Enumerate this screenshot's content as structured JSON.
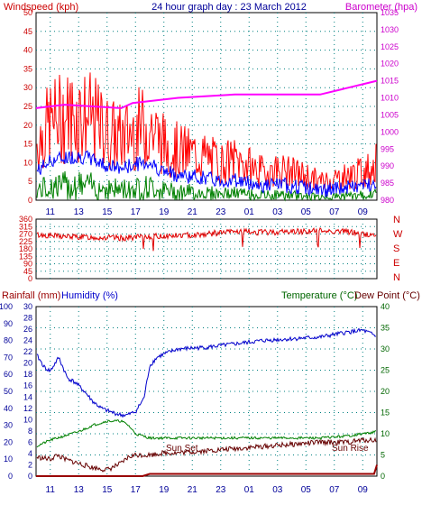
{
  "header": {
    "left_label": "Windspeed (kph)",
    "title": "24 hour graph day : 23 March 2012",
    "right_label": "Barometer (hpa)"
  },
  "colors": {
    "wind_gust": "#ff0000",
    "wind_avg": "#0000ff",
    "wind_low": "#008000",
    "barometer": "#ff00ff",
    "direction": "#e00000",
    "humidity": "#0000cc",
    "temperature": "#008000",
    "dew_point": "#660000",
    "rainfall": "#990000",
    "axis_red": "#cc0000",
    "axis_pink": "#cc00cc",
    "axis_blue": "#000099",
    "axis_green": "#006600",
    "grid": "#008080"
  },
  "chart_data": [
    {
      "id": "wind",
      "type": "line",
      "title": "24 hour graph day : 23 March 2012",
      "x_ticks": [
        "11",
        "13",
        "15",
        "17",
        "19",
        "21",
        "23",
        "01",
        "03",
        "05",
        "07",
        "09"
      ],
      "y_left": {
        "label": "Windspeed (kph)",
        "ylim": [
          0,
          50
        ],
        "ticks": [
          0,
          5,
          10,
          15,
          20,
          25,
          30,
          35,
          40,
          45,
          50
        ]
      },
      "y_right": {
        "label": "Barometer (hpa)",
        "ylim": [
          980,
          1035
        ],
        "ticks": [
          980,
          985,
          990,
          995,
          1000,
          1005,
          1010,
          1015,
          1020,
          1025,
          1030,
          1035
        ]
      },
      "series": [
        {
          "name": "Windspeed",
          "hours": [
            0,
            1,
            2,
            3,
            4,
            5,
            6,
            7,
            8,
            9,
            10,
            11,
            12,
            13,
            14,
            15,
            16,
            17,
            18,
            19,
            20,
            21,
            22,
            23,
            24
          ],
          "values": [
            18,
            25,
            27,
            28,
            26,
            22,
            20,
            23,
            24,
            18,
            16,
            15,
            14,
            12,
            13,
            11,
            9,
            10,
            9,
            8,
            6,
            7,
            8,
            9,
            12
          ]
        },
        {
          "name": "Barometer",
          "hours": [
            0,
            2,
            4,
            6,
            6.8,
            10,
            14,
            18,
            20,
            22,
            23,
            24
          ],
          "values": [
            1007,
            1008,
            1007.5,
            1007,
            1008.5,
            1010,
            1011,
            1011,
            1011,
            1013,
            1014,
            1015
          ]
        }
      ]
    },
    {
      "id": "direction",
      "type": "line",
      "x_ticks": [
        "11",
        "13",
        "15",
        "17",
        "19",
        "21",
        "23",
        "01",
        "03",
        "05",
        "07",
        "09"
      ],
      "y_left": {
        "ylim": [
          0,
          360
        ],
        "ticks": [
          0,
          45,
          90,
          135,
          180,
          225,
          270,
          315,
          360
        ]
      },
      "compass": [
        "N",
        "W",
        "S",
        "E",
        "N"
      ],
      "series": [
        {
          "name": "Direction",
          "hours": [
            0,
            2,
            4,
            6,
            8,
            10,
            12,
            14,
            16,
            18,
            20,
            22,
            23,
            24
          ],
          "values": [
            265,
            255,
            250,
            245,
            255,
            260,
            270,
            285,
            280,
            285,
            290,
            285,
            270,
            260
          ]
        }
      ]
    },
    {
      "id": "temp_hum",
      "type": "line",
      "labels": {
        "rainfall": "Rainfall (mm)",
        "humidity": "Humidity (%)",
        "temperature": "Temperature (°C)",
        "dew_point": "Dew Point (°C)"
      },
      "annotations": [
        "Sun Set",
        "Sun Rise"
      ],
      "x_ticks": [
        "11",
        "13",
        "15",
        "17",
        "19",
        "21",
        "23",
        "01",
        "03",
        "05",
        "07",
        "09"
      ],
      "y_humidity": {
        "ylim": [
          0,
          100
        ],
        "ticks": [
          0,
          10,
          20,
          30,
          40,
          50,
          60,
          70,
          80,
          90,
          100
        ]
      },
      "y_rainfall": {
        "ylim": [
          0,
          30
        ],
        "ticks": [
          0,
          2,
          4,
          6,
          8,
          10,
          12,
          14,
          16,
          18,
          20,
          22,
          24,
          26,
          28,
          30
        ]
      },
      "y_temperature": {
        "ylim": [
          0,
          40
        ],
        "ticks": [
          0,
          5,
          10,
          15,
          20,
          25,
          30,
          35,
          40
        ]
      },
      "series": [
        {
          "name": "Humidity",
          "hours": [
            0,
            0.6,
            1,
            1.6,
            2.2,
            2.8,
            3.4,
            4,
            4.6,
            5.2,
            5.6,
            6,
            6.4,
            7,
            7.6,
            8,
            8.5,
            9,
            10,
            12,
            14,
            16,
            18,
            20,
            22,
            23,
            23.6,
            24
          ],
          "values": [
            72,
            64,
            62,
            70,
            58,
            55,
            50,
            44,
            40,
            38,
            37,
            36,
            36,
            38,
            46,
            65,
            70,
            72,
            75,
            76,
            78,
            80,
            81,
            82,
            85,
            86,
            84,
            82
          ]
        },
        {
          "name": "Temperature",
          "hours": [
            0,
            1,
            2,
            3,
            4,
            5,
            6,
            6.5,
            7,
            8,
            9,
            10,
            12,
            14,
            16,
            18,
            20,
            22,
            23,
            24
          ],
          "values": [
            7,
            8.5,
            9.5,
            10.5,
            12,
            13,
            13,
            12,
            10,
            9,
            9,
            9,
            9,
            9,
            9,
            9,
            9,
            9.5,
            10,
            10.5
          ]
        },
        {
          "name": "Dew Point",
          "hours": [
            0,
            1,
            1.5,
            2,
            3,
            4,
            5,
            6,
            6.5,
            7,
            8,
            9,
            10,
            12,
            14,
            16,
            18,
            20,
            22,
            23,
            24
          ],
          "values": [
            4.5,
            4,
            5,
            4,
            3,
            2,
            1.5,
            3,
            4.5,
            5,
            5,
            5.5,
            5.5,
            6,
            6.5,
            7,
            7.5,
            8,
            8,
            8.5,
            8.5
          ]
        },
        {
          "name": "Rainfall",
          "hours": [
            0,
            7.5,
            8,
            23.8,
            24
          ],
          "values": [
            0,
            0,
            0.4,
            0.4,
            2
          ]
        }
      ]
    }
  ]
}
